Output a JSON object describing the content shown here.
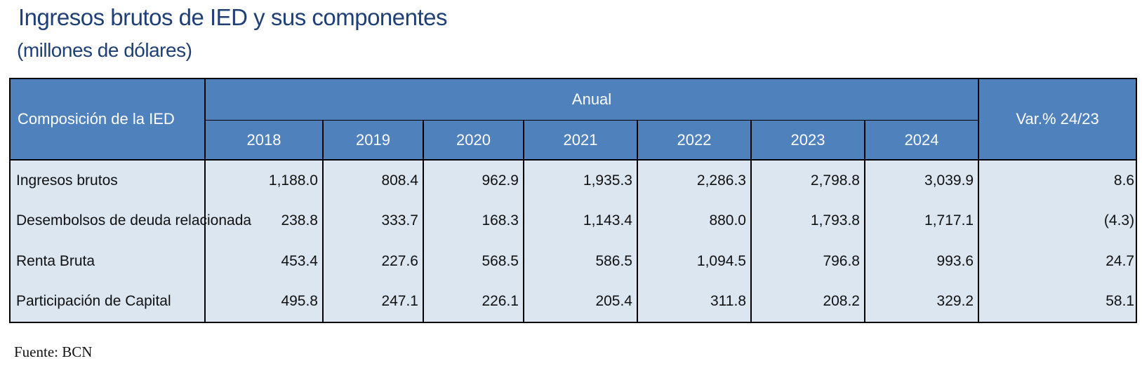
{
  "title": "Ingresos brutos de IED y sus componentes",
  "subtitle": "(millones de dólares)",
  "source": "Fuente: BCN",
  "chart_data": {
    "type": "table",
    "header": {
      "row_label": "Composición de la IED",
      "group_label": "Anual",
      "var_label": "Var.% 24/23",
      "years": [
        "2018",
        "2019",
        "2020",
        "2021",
        "2022",
        "2023",
        "2024"
      ]
    },
    "rows": [
      {
        "label": "Ingresos brutos",
        "values": [
          "1,188.0",
          "808.4",
          "962.9",
          "1,935.3",
          "2,286.3",
          "2,798.8",
          "3,039.9"
        ],
        "var": "8.6"
      },
      {
        "label": "Desembolsos de deuda relacionada",
        "values": [
          "238.8",
          "333.7",
          "168.3",
          "1,143.4",
          "880.0",
          "1,793.8",
          "1,717.1"
        ],
        "var": "(4.3)"
      },
      {
        "label": "Renta Bruta",
        "values": [
          "453.4",
          "227.6",
          "568.5",
          "586.5",
          "1,094.5",
          "796.8",
          "993.6"
        ],
        "var": "24.7"
      },
      {
        "label": "Participación de Capital",
        "values": [
          "495.8",
          "247.1",
          "226.1",
          "205.4",
          "311.8",
          "208.2",
          "329.2"
        ],
        "var": "58.1"
      }
    ]
  },
  "colors": {
    "header_bg": "#4f81bd",
    "body_bg": "#dce6f1",
    "title": "#1f3f77"
  }
}
